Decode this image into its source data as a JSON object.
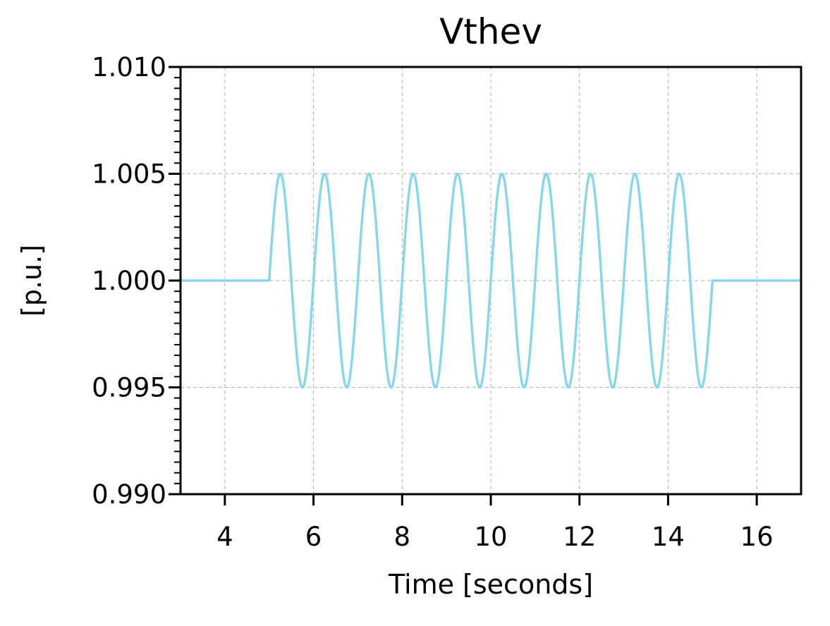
{
  "chart_data": {
    "type": "line",
    "title": "Vthev",
    "xlabel": "Time [seconds]",
    "ylabel": "[p.u.]",
    "xlim": [
      3,
      17
    ],
    "ylim": [
      0.99,
      1.01
    ],
    "x_ticks": [
      4,
      6,
      8,
      10,
      12,
      14,
      16
    ],
    "x_tick_labels": [
      "4",
      "6",
      "8",
      "10",
      "12",
      "14",
      "16"
    ],
    "y_ticks": [
      0.99,
      0.995,
      1.0,
      1.005,
      1.01
    ],
    "y_tick_labels": [
      "0.990",
      "0.995",
      "1.000",
      "1.005",
      "1.010"
    ],
    "y_minor_step": 0.0005,
    "grid": true,
    "series": [
      {
        "color": "#8ad6e8",
        "baseline": 1.0,
        "oscillation": {
          "start": 5.0,
          "end": 15.0,
          "amplitude": 0.005,
          "frequency_hz": 1.0
        }
      }
    ]
  }
}
